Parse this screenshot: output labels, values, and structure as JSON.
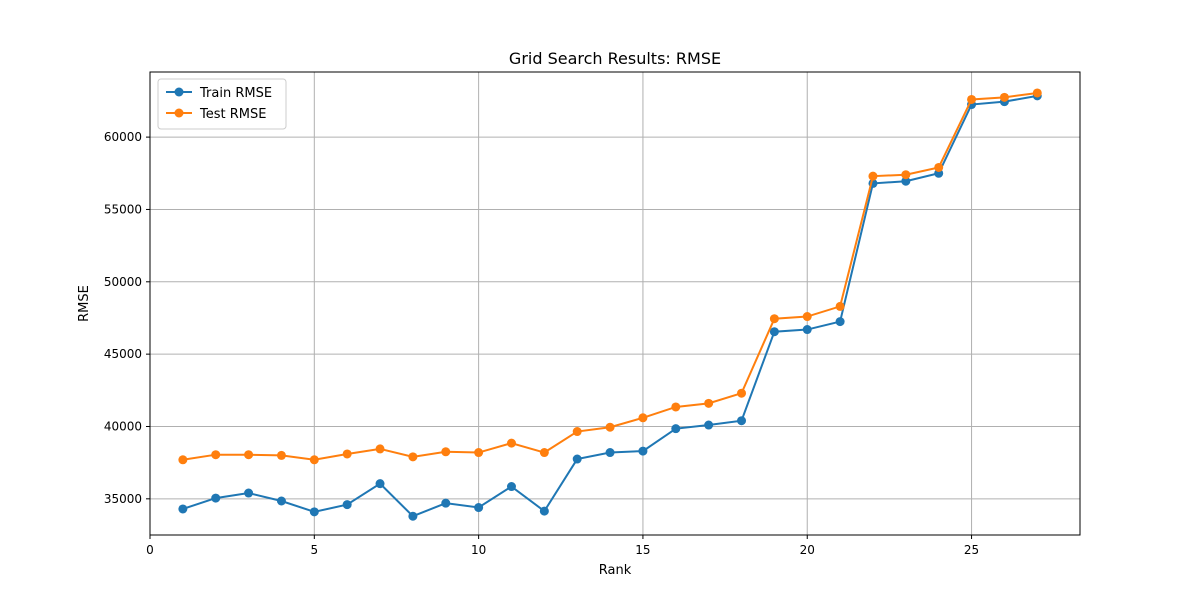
{
  "chart_data": {
    "type": "line",
    "title": "Grid Search Results: RMSE",
    "xlabel": "Rank",
    "ylabel": "RMSE",
    "xlim": [
      0,
      28.3
    ],
    "ylim": [
      32500,
      64500
    ],
    "xticks": [
      0,
      5,
      10,
      15,
      20,
      25
    ],
    "yticks": [
      35000,
      40000,
      45000,
      50000,
      55000,
      60000
    ],
    "grid": true,
    "legend": "top-left",
    "x": [
      1,
      2,
      3,
      4,
      5,
      6,
      7,
      8,
      9,
      10,
      11,
      12,
      13,
      14,
      15,
      16,
      17,
      18,
      19,
      20,
      21,
      22,
      23,
      24,
      25,
      26,
      27
    ],
    "series": [
      {
        "name": "Train RMSE",
        "color": "#1f77b4",
        "values": [
          34300,
          35050,
          35400,
          34850,
          34100,
          34600,
          36050,
          33800,
          34700,
          34400,
          35850,
          34150,
          37750,
          38200,
          38300,
          39850,
          40100,
          40400,
          46550,
          46700,
          47250,
          56800,
          56950,
          57500,
          62250,
          62450,
          62850
        ]
      },
      {
        "name": "Test RMSE",
        "color": "#ff7f0e",
        "values": [
          37700,
          38050,
          38050,
          38000,
          37700,
          38100,
          38450,
          37900,
          38250,
          38200,
          38850,
          38200,
          39650,
          39950,
          40600,
          41350,
          41600,
          42300,
          47450,
          47600,
          48300,
          57300,
          57400,
          57900,
          62600,
          62750,
          63050
        ]
      }
    ]
  }
}
